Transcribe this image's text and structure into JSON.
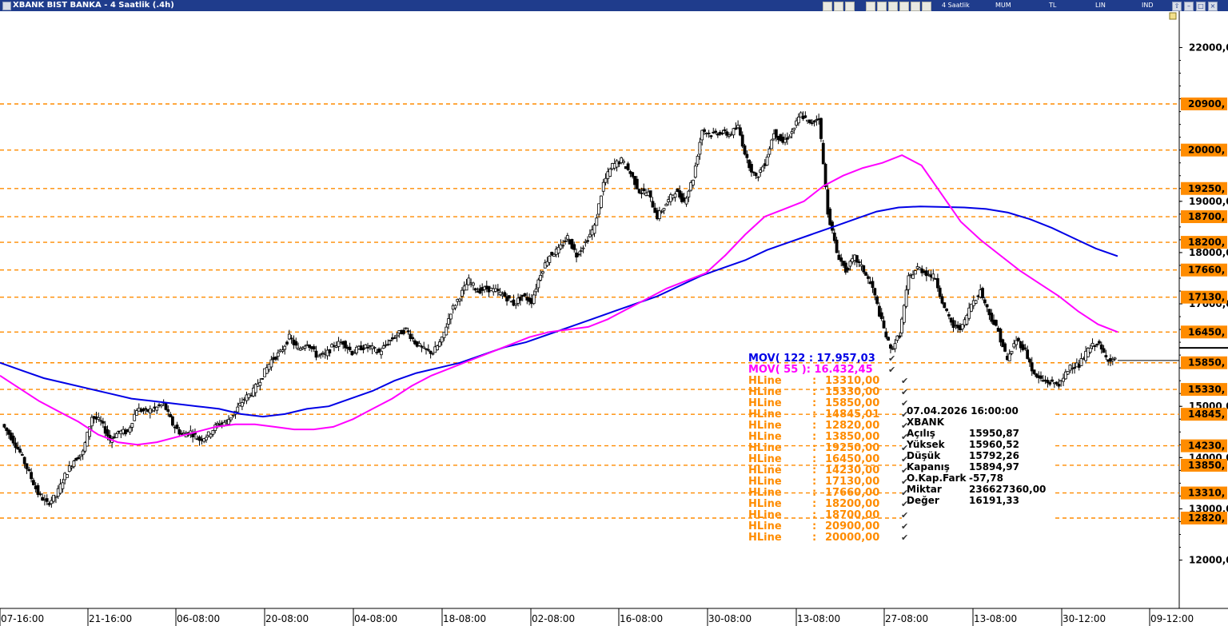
{
  "window": {
    "title": "XBANK BIST BANKA - 4 Saatlik (.4h)",
    "menu": [
      "4 Saatlik",
      "MUM",
      "TL",
      "LIN",
      "IND"
    ]
  },
  "indicators": [
    {
      "label": "MOV( 122 : 17.957,03",
      "color": "#0000e6"
    },
    {
      "label": "MOV( 55 ): 16.432,45",
      "color": "#ff00ff"
    }
  ],
  "hlines": [
    {
      "name": "HLine",
      "value": "13310,00"
    },
    {
      "name": "HLine",
      "value": "15330,00"
    },
    {
      "name": "HLine",
      "value": "15850,00"
    },
    {
      "name": "HLine",
      "value": "14845,01"
    },
    {
      "name": "HLine",
      "value": "12820,00"
    },
    {
      "name": "HLine",
      "value": "13850,00"
    },
    {
      "name": "HLine",
      "value": "19250,00"
    },
    {
      "name": "HLine",
      "value": "16450,00"
    },
    {
      "name": "HLine",
      "value": "14230,00"
    },
    {
      "name": "HLine",
      "value": "17130,00"
    },
    {
      "name": "HLine",
      "value": "17660,00"
    },
    {
      "name": "HLine",
      "value": "18200,00"
    },
    {
      "name": "HLine",
      "value": "18700,00"
    },
    {
      "name": "HLine",
      "value": "20900,00"
    },
    {
      "name": "HLine",
      "value": "20000,00"
    }
  ],
  "hline_color": "#ff8c00",
  "ohlc": {
    "datetime": "07.04.2026 16:00:00",
    "symbol": "XBANK",
    "rows": [
      {
        "label": "Açılış",
        "value": "15950,87"
      },
      {
        "label": "Yüksek",
        "value": "15960,52"
      },
      {
        "label": "Düşük",
        "value": "15792,26"
      },
      {
        "label": "Kapanış",
        "value": "15894,97"
      },
      {
        "label": "O.Kap.Fark",
        "value": "-57,78"
      },
      {
        "label": "Miktar",
        "value": "236627360,00"
      },
      {
        "label": "Değer",
        "value": "16191,33"
      }
    ]
  },
  "chart_data": {
    "type": "candlestick",
    "x_tick_labels": [
      "07-16:00",
      "21-16:00",
      "06-08:00",
      "20-08:00",
      "04-08:00",
      "18-08:00",
      "02-08:00",
      "16-08:00",
      "30-08:00",
      "13-08:00",
      "27-08:00",
      "13-08:00",
      "30-12:00",
      "09-12:00"
    ],
    "y_tick_labels": [
      {
        "label": "22000,0",
        "value": 22000
      },
      {
        "label": "19000,0",
        "value": 19000
      },
      {
        "label": "18000,0",
        "value": 18000
      },
      {
        "label": "17000,0",
        "value": 17000
      },
      {
        "label": "15000,0",
        "value": 15000
      },
      {
        "label": "14000,0",
        "value": 14000
      },
      {
        "label": "13000,0",
        "value": 13000
      },
      {
        "label": "12000,0",
        "value": 12000
      }
    ],
    "hline_axis_labels": [
      {
        "label": "20900,",
        "value": 20900
      },
      {
        "label": "20000,",
        "value": 20000
      },
      {
        "label": "19250,",
        "value": 19250
      },
      {
        "label": "18700,",
        "value": 18700
      },
      {
        "label": "18200,",
        "value": 18200
      },
      {
        "label": "17660,",
        "value": 17660
      },
      {
        "label": "17130,",
        "value": 17130
      },
      {
        "label": "16450,",
        "value": 16450
      },
      {
        "label": "15850,",
        "value": 15850
      },
      {
        "label": "15330,",
        "value": 15330
      },
      {
        "label": "14845,",
        "value": 14845
      },
      {
        "label": "14230,",
        "value": 14230
      },
      {
        "label": "13850,",
        "value": 13850
      },
      {
        "label": "13310,",
        "value": 13310
      },
      {
        "label": "12820,",
        "value": 12820
      }
    ],
    "last_price": 15894.97,
    "y_range": [
      11800,
      22300
    ],
    "close_path": [
      14650,
      14400,
      14100,
      13700,
      13300,
      13100,
      13250,
      13650,
      13950,
      14100,
      14800,
      14700,
      14350,
      14500,
      14500,
      14950,
      14900,
      14950,
      15050,
      14650,
      14450,
      14500,
      14350,
      14450,
      14650,
      14700,
      14900,
      15150,
      15300,
      15600,
      15900,
      16050,
      16350,
      16100,
      16250,
      16000,
      16000,
      16200,
      16250,
      16050,
      16150,
      16150,
      16050,
      16250,
      16400,
      16500,
      16250,
      16100,
      16050,
      16300,
      16850,
      17150,
      17450,
      17250,
      17300,
      17250,
      17150,
      17000,
      17150,
      17050,
      17600,
      17950,
      18050,
      18300,
      17950,
      18200,
      18500,
      19350,
      19700,
      19800,
      19550,
      19200,
      19150,
      18700,
      18950,
      19200,
      19000,
      19450,
      20400,
      20300,
      20350,
      20300,
      20450,
      19800,
      19450,
      19750,
      20350,
      20150,
      20350,
      20700,
      20500,
      20650,
      18800,
      18000,
      17650,
      17900,
      17650,
      17300,
      16650,
      16100,
      16400,
      17500,
      17700,
      17600,
      17500,
      16900,
      16550,
      16550,
      17000,
      17250,
      16800,
      16450,
      15900,
      16300,
      16100,
      15600,
      15500,
      15450,
      15450,
      15800,
      15800,
      16100,
      16250,
      15950,
      15895
    ],
    "series": [
      {
        "name": "MOV( 122",
        "color": "#0000e6",
        "values": [
          15850,
          15700,
          15550,
          15450,
          15350,
          15250,
          15150,
          15100,
          15050,
          15000,
          14950,
          14850,
          14800,
          14850,
          14950,
          15000,
          15150,
          15300,
          15500,
          15650,
          15750,
          15850,
          16000,
          16150,
          16250,
          16400,
          16550,
          16700,
          16850,
          17000,
          17150,
          17350,
          17550,
          17700,
          17850,
          18050,
          18200,
          18350,
          18500,
          18650,
          18800,
          18880,
          18900,
          18890,
          18880,
          18850,
          18780,
          18650,
          18480,
          18280,
          18080,
          17930
        ]
      },
      {
        "name": "MOV( 55 )",
        "color": "#ff00ff",
        "values": [
          15600,
          15350,
          15100,
          14900,
          14700,
          14450,
          14300,
          14250,
          14300,
          14400,
          14500,
          14600,
          14650,
          14650,
          14600,
          14550,
          14550,
          14600,
          14750,
          14950,
          15150,
          15400,
          15600,
          15750,
          15900,
          16050,
          16200,
          16350,
          16450,
          16500,
          16550,
          16700,
          16900,
          17100,
          17300,
          17450,
          17600,
          17950,
          18350,
          18700,
          18850,
          19000,
          19300,
          19500,
          19650,
          19750,
          19900,
          19700,
          19150,
          18600,
          18250,
          17950,
          17650,
          17400,
          17150,
          16850,
          16600,
          16450
        ]
      }
    ]
  }
}
